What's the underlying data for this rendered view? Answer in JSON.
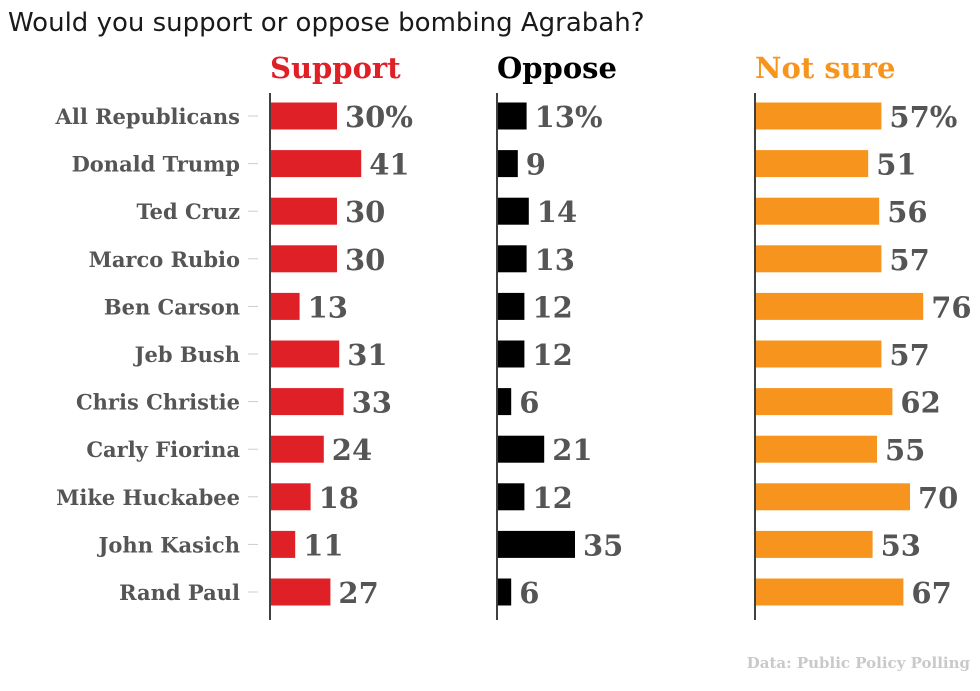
{
  "title": "Would you support or oppose bombing Agrabah?",
  "source": "Data: Public Policy Polling",
  "chart_data": {
    "type": "bar",
    "orientation": "horizontal",
    "categories": [
      "All Republicans",
      "Donald Trump",
      "Ted Cruz",
      "Marco Rubio",
      "Ben Carson",
      "Jeb Bush",
      "Chris Christie",
      "Carly Fiorina",
      "Mike Huckabee",
      "John Kasich",
      "Rand Paul"
    ],
    "series": [
      {
        "name": "Support",
        "color": "#e02027",
        "values": [
          30,
          41,
          30,
          30,
          13,
          31,
          33,
          24,
          18,
          11,
          27
        ],
        "labels": [
          "30%",
          "41",
          "30",
          "30",
          "13",
          "31",
          "33",
          "24",
          "18",
          "11",
          "27"
        ]
      },
      {
        "name": "Oppose",
        "color": "#000000",
        "values": [
          13,
          9,
          14,
          13,
          12,
          12,
          6,
          21,
          12,
          35,
          6
        ],
        "labels": [
          "13%",
          "9",
          "14",
          "13",
          "12",
          "12",
          "6",
          "21",
          "12",
          "35",
          "6"
        ]
      },
      {
        "name": "Not sure",
        "color": "#f7941d",
        "values": [
          57,
          51,
          56,
          57,
          76,
          57,
          62,
          55,
          70,
          53,
          67
        ],
        "labels": [
          "57%",
          "51",
          "56",
          "57",
          "76",
          "57",
          "62",
          "55",
          "70",
          "53",
          "67"
        ]
      }
    ],
    "label_color": "#555555",
    "grid": false,
    "legend": "series names as column headers"
  }
}
